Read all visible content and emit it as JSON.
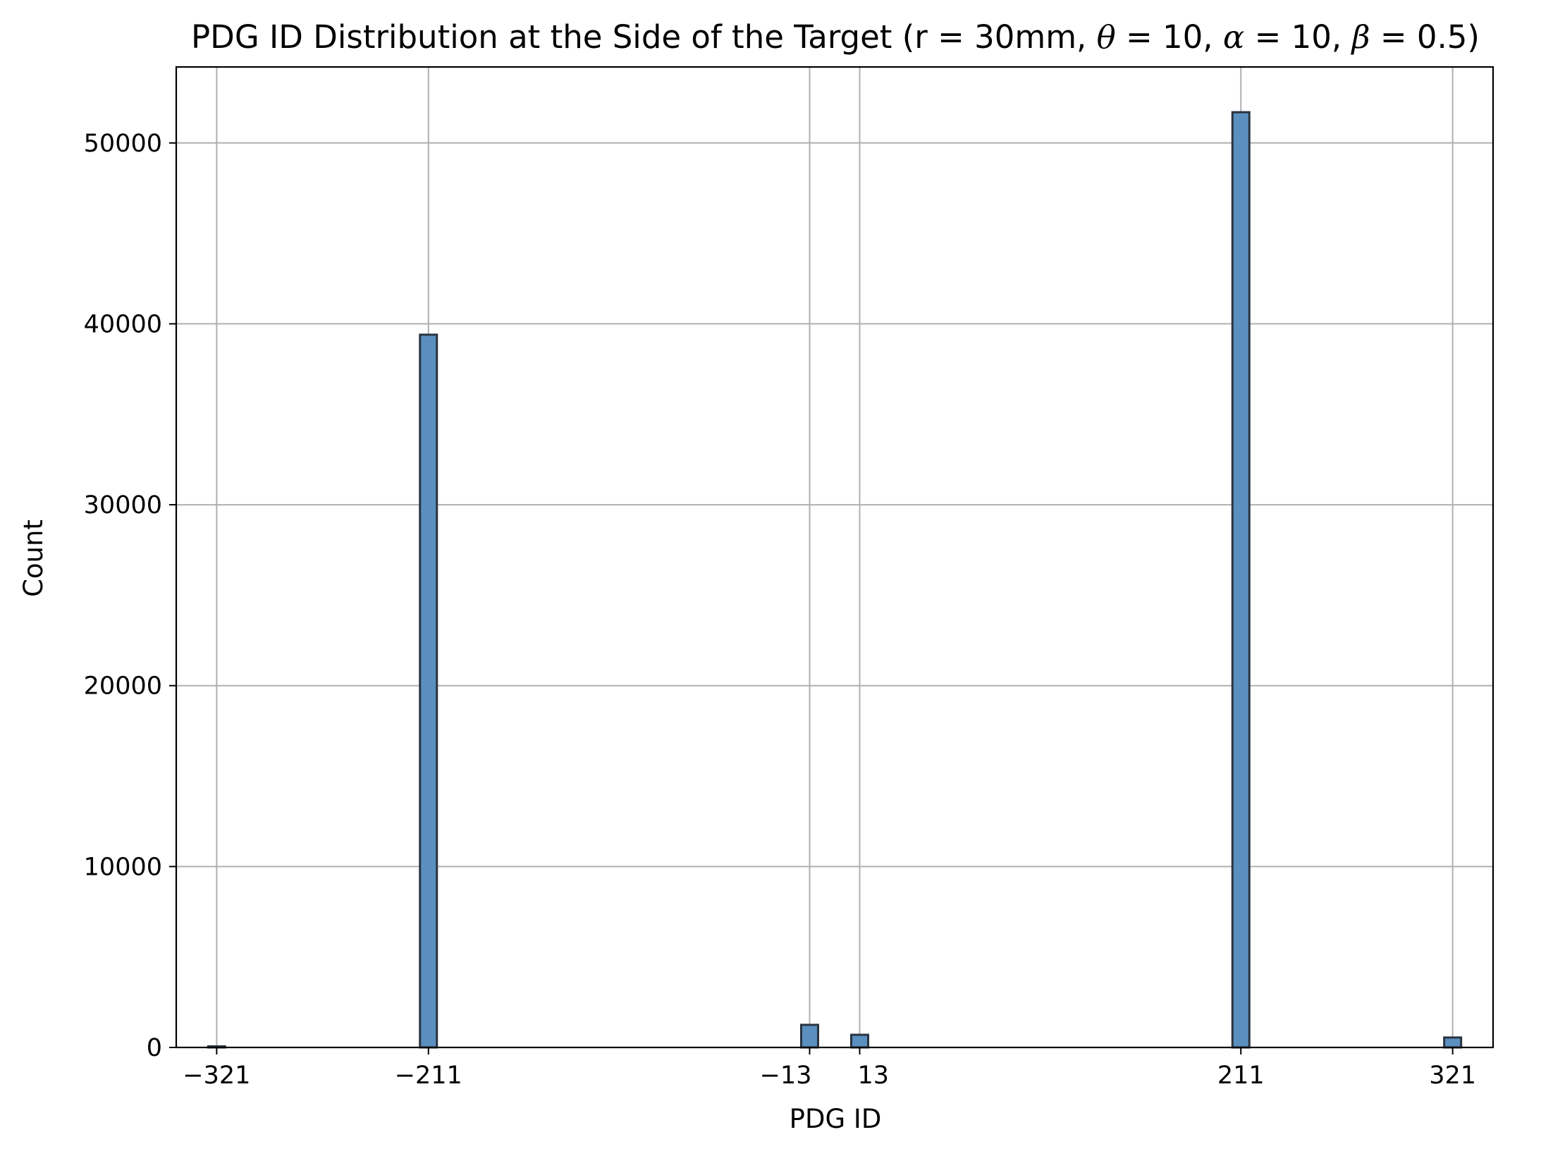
{
  "chart_data": {
    "type": "bar",
    "title_parts": {
      "prefix": "PDG ID Distribution at the Side of the Target (r = 30mm, ",
      "theta_symbol": "θ",
      "theta_value": " = 10, ",
      "alpha_symbol": "α",
      "alpha_value": " = 10, ",
      "beta_symbol": "β",
      "beta_value": " = 0.5)"
    },
    "xlabel": "PDG ID",
    "ylabel": "Count",
    "xlim": [
      -342,
      342
    ],
    "ylim": [
      0,
      54200
    ],
    "grid": true,
    "bar_color": "#5b8fbf",
    "edge_color": "#2a3440",
    "x_ticks": [
      {
        "value": -321,
        "label": "−321"
      },
      {
        "value": -211,
        "label": "−211"
      },
      {
        "value": -13,
        "label": "−13"
      },
      {
        "value": 13,
        "label": "13"
      },
      {
        "value": 211,
        "label": "211"
      },
      {
        "value": 321,
        "label": "321"
      }
    ],
    "y_ticks": [
      {
        "value": 0,
        "label": "0"
      },
      {
        "value": 10000,
        "label": "10000"
      },
      {
        "value": 20000,
        "label": "20000"
      },
      {
        "value": 30000,
        "label": "30000"
      },
      {
        "value": 40000,
        "label": "40000"
      },
      {
        "value": 50000,
        "label": "50000"
      }
    ],
    "bars": [
      {
        "x": -321,
        "value": 60
      },
      {
        "x": -211,
        "value": 39400
      },
      {
        "x": -13,
        "value": 1250
      },
      {
        "x": 13,
        "value": 700
      },
      {
        "x": 211,
        "value": 51700
      },
      {
        "x": 321,
        "value": 550
      }
    ]
  }
}
